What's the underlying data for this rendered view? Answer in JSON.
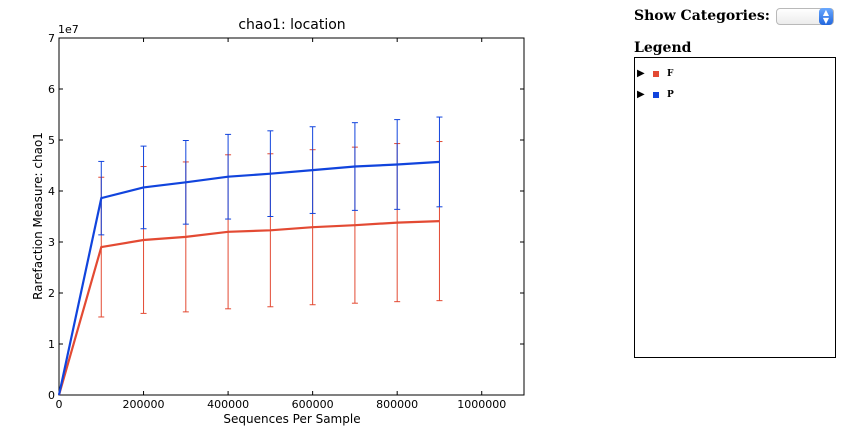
{
  "controls": {
    "show_categories_label": "Show Categories:",
    "categories_selected": ""
  },
  "legend": {
    "title": "Legend",
    "items": [
      {
        "label": "F",
        "color": "#e34a33",
        "toggle_icon": "triangle-right-icon"
      },
      {
        "label": "P",
        "color": "#1144dd",
        "toggle_icon": "triangle-right-icon"
      }
    ]
  },
  "chart_data": {
    "type": "line",
    "title": "chao1: location",
    "xlabel": "Sequences Per Sample",
    "ylabel": "Rarefaction Measure: chao1",
    "y_multiplier": "1e7",
    "xlim": [
      0,
      1100000
    ],
    "ylim": [
      0,
      7
    ],
    "x_ticks": [
      0,
      200000,
      400000,
      600000,
      800000,
      1000000
    ],
    "x_tick_labels": [
      "0",
      "200000",
      "400000",
      "600000",
      "800000",
      "1000000"
    ],
    "y_ticks": [
      0,
      1,
      2,
      3,
      4,
      5,
      6,
      7
    ],
    "y_tick_labels": [
      "0",
      "1",
      "2",
      "3",
      "4",
      "5",
      "6",
      "7"
    ],
    "grid": false,
    "x": [
      0,
      100000,
      200000,
      300000,
      400000,
      500000,
      600000,
      700000,
      800000,
      900000
    ],
    "series": [
      {
        "name": "F",
        "color": "#e34a33",
        "values": [
          0,
          2.9,
          3.04,
          3.1,
          3.2,
          3.23,
          3.29,
          3.33,
          3.38,
          3.41
        ],
        "error": [
          0,
          1.37,
          1.44,
          1.47,
          1.51,
          1.5,
          1.52,
          1.53,
          1.55,
          1.56
        ]
      },
      {
        "name": "P",
        "color": "#1144dd",
        "values": [
          0,
          3.86,
          4.07,
          4.17,
          4.28,
          4.34,
          4.41,
          4.48,
          4.52,
          4.57
        ],
        "error": [
          0,
          0.72,
          0.81,
          0.82,
          0.83,
          0.84,
          0.85,
          0.86,
          0.88,
          0.88
        ]
      }
    ]
  }
}
